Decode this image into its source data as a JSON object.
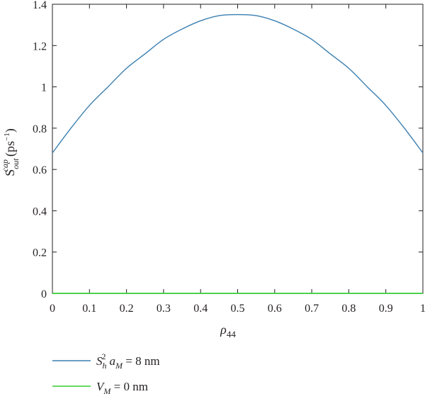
{
  "chart_data": {
    "type": "line",
    "title": "",
    "xlabel": "ρ44",
    "ylabel": "S_out^cap (ps^-1)",
    "xlim": [
      0,
      1
    ],
    "ylim": [
      0,
      1.4
    ],
    "x_ticks": [
      "0",
      "0.1",
      "0.2",
      "0.3",
      "0.4",
      "0.5",
      "0.6",
      "0.7",
      "0.8",
      "0.9",
      "1"
    ],
    "y_ticks": [
      "0",
      "0.2",
      "0.4",
      "0.6",
      "0.8",
      "1",
      "1.2",
      "1.4"
    ],
    "grid": false,
    "legend_position": "bottom-left",
    "series": [
      {
        "name": "S_h^2 a_M = 8 nm",
        "color": "#3a7fb0",
        "x": [
          0,
          0.05,
          0.1,
          0.15,
          0.2,
          0.25,
          0.3,
          0.35,
          0.4,
          0.45,
          0.5,
          0.55,
          0.6,
          0.65,
          0.7,
          0.75,
          0.8,
          0.85,
          0.9,
          0.95,
          1
        ],
        "y": [
          0.68,
          0.8,
          0.91,
          1.0,
          1.09,
          1.16,
          1.23,
          1.28,
          1.32,
          1.345,
          1.35,
          1.345,
          1.32,
          1.28,
          1.23,
          1.16,
          1.09,
          1.0,
          0.91,
          0.8,
          0.68
        ]
      },
      {
        "name": "V_M = 0 nm",
        "color": "#33cc33",
        "x": [
          0,
          1
        ],
        "y": [
          0,
          0
        ]
      }
    ]
  }
}
